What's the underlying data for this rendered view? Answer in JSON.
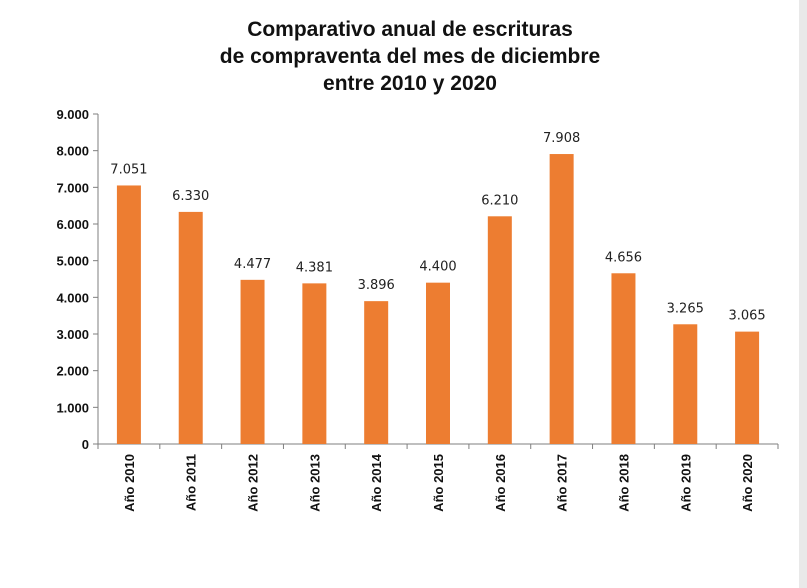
{
  "chart_data": {
    "type": "bar",
    "title_lines": [
      "Comparativo anual de escrituras",
      "de compraventa del mes de diciembre",
      "entre 2010 y 2020"
    ],
    "categories": [
      "Año 2010",
      "Año 2011",
      "Año 2012",
      "Año 2013",
      "Año 2014",
      "Año 2015",
      "Año 2016",
      "Año 2017",
      "Año 2018",
      "Año 2019",
      "Año 2020"
    ],
    "values": [
      7051,
      6330,
      4477,
      4381,
      3896,
      4400,
      6210,
      7908,
      4656,
      3265,
      3065
    ],
    "data_labels": [
      "7.051",
      "6.330",
      "4.477",
      "4.381",
      "3.896",
      "4.400",
      "6.210",
      "7.908",
      "4.656",
      "3.265",
      "3.065"
    ],
    "y_ticks": [
      0,
      1000,
      2000,
      3000,
      4000,
      5000,
      6000,
      7000,
      8000,
      9000
    ],
    "y_tick_labels": [
      "0",
      "1.000",
      "2.000",
      "3.000",
      "4.000",
      "5.000",
      "6.000",
      "7.000",
      "8.000",
      "9.000"
    ],
    "ylim": [
      0,
      9000
    ],
    "xlabel": "",
    "ylabel": "",
    "grid": false,
    "legend": "none",
    "bar_color": "#ed7d31"
  }
}
